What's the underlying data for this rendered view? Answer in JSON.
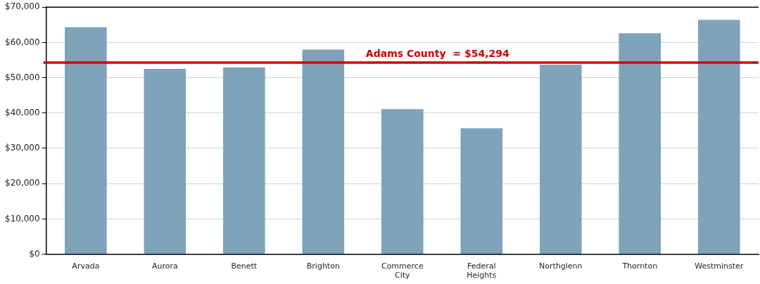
{
  "chart_data": {
    "type": "bar",
    "categories": [
      "Arvada",
      "Aurora",
      "Benett",
      "Brighton",
      "Commerce City",
      "Federal Heights",
      "Northglenn",
      "Thornton",
      "Westminster"
    ],
    "values": [
      64300,
      52500,
      52900,
      58000,
      41100,
      35700,
      53700,
      62600,
      66400
    ],
    "color": "#7fa3b8",
    "ylim": [
      0,
      70000
    ],
    "yticks": [
      {
        "value": 0,
        "label": "$0"
      },
      {
        "value": 10000,
        "label": "$10,000"
      },
      {
        "value": 20000,
        "label": "$20,000"
      },
      {
        "value": 30000,
        "label": "$30,000"
      },
      {
        "value": 40000,
        "label": "$40,000"
      },
      {
        "value": 50000,
        "label": "$50,000"
      },
      {
        "value": 60000,
        "label": "$60,000"
      },
      {
        "value": 70000,
        "label": "$70,000"
      }
    ],
    "grid": "y",
    "ref_lines": [
      {
        "axis": "y",
        "value": 54294,
        "label": "Adams County  = $54,294",
        "color": "#cc0000"
      }
    ]
  }
}
